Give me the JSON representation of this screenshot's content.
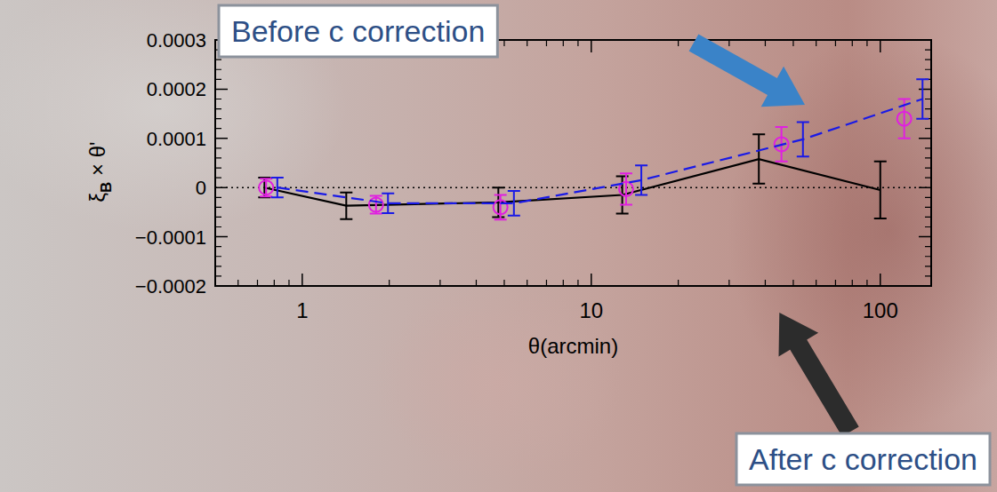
{
  "chart_data": {
    "type": "line",
    "xlabel": "θ(arcmin)",
    "ylabel": "ξB × θ'",
    "log": "x",
    "xlim": [
      0.5,
      150
    ],
    "ylim": [
      -0.0002,
      0.0003
    ],
    "xticks": [
      1,
      10,
      100
    ],
    "yticks": [
      {
        "value": -0.0002,
        "label": "−0.0002"
      },
      {
        "value": -0.0001,
        "label": "−0.0001"
      },
      0,
      0.0001,
      0.0002,
      0.0003
    ],
    "hline": 0,
    "annotations": [
      "Before c correction",
      "After c correction"
    ],
    "series": [
      {
        "color": "#000000",
        "line_style": "solid",
        "marker": "none",
        "x": [
          0.74,
          1.42,
          4.77,
          12.8,
          38,
          100
        ],
        "values": [
          0,
          -3.7e-05,
          -3e-05,
          -1.5e-05,
          5.8e-05,
          -5e-06
        ],
        "errors": [
          2e-05,
          2.7e-05,
          3e-05,
          3.8e-05,
          5e-05,
          5.8e-05
        ]
      },
      {
        "color": "#e020e0",
        "line_style": "none",
        "marker": "circle",
        "x": [
          0.75,
          1.8,
          4.85,
          13.2,
          45.5,
          121
        ],
        "values": [
          0,
          -3.5e-05,
          -4e-05,
          -3e-06,
          8.8e-05,
          0.00014
        ],
        "errors": [
          1.8e-05,
          1.8e-05,
          2.5e-05,
          3.2e-05,
          3.5e-05,
          4e-05
        ]
      },
      {
        "color": "#1a1ae6",
        "line_style": "dashed",
        "marker": "none",
        "x": [
          0.82,
          1.98,
          5.4,
          14.9,
          54,
          140
        ],
        "values": [
          0,
          -3.2e-05,
          -3.2e-05,
          1.5e-05,
          9.8e-05,
          0.00018
        ],
        "errors": [
          2e-05,
          2e-05,
          2.5e-05,
          3e-05,
          3.5e-05,
          4e-05
        ]
      }
    ]
  }
}
